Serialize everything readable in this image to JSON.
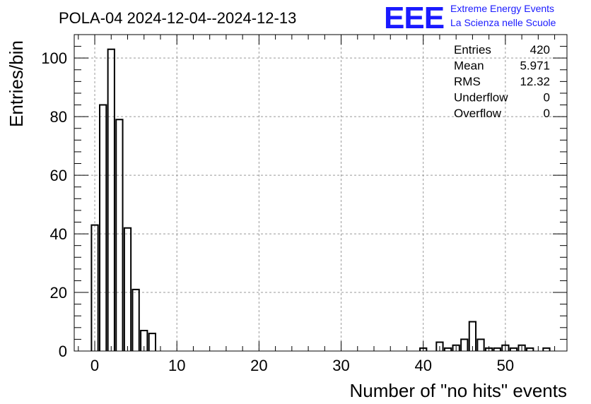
{
  "header": {
    "title": "POLA-04 2024-12-04--2024-12-13"
  },
  "logo": {
    "mark": "EEE",
    "line1": "Extreme Energy Events",
    "line2": "La Scienza nelle Scuole",
    "color": "#1a1aff"
  },
  "stats": {
    "rows": [
      {
        "label": "Entries",
        "value": "420"
      },
      {
        "label": "Mean",
        "value": "5.971"
      },
      {
        "label": "RMS",
        "value": "12.32"
      },
      {
        "label": "Underflow",
        "value": "0"
      },
      {
        "label": "Overflow",
        "value": "0"
      }
    ]
  },
  "chart_data": {
    "type": "bar",
    "style": "histogram-step",
    "title": "POLA-04 2024-12-04--2024-12-13",
    "xlabel": "Number of \"no hits\" events",
    "ylabel": "Entries/bin",
    "xlim": [
      -2.5,
      57.5
    ],
    "ylim": [
      0,
      108
    ],
    "bin_width": 0.8,
    "x_ticks": [
      0,
      10,
      20,
      30,
      40,
      50
    ],
    "y_ticks": [
      0,
      20,
      40,
      60,
      80,
      100
    ],
    "grid": true,
    "legend": "none",
    "stats_box": "top-right",
    "line_color": "#000000",
    "bins": [
      {
        "x": 0,
        "value": 43
      },
      {
        "x": 1,
        "value": 84
      },
      {
        "x": 2,
        "value": 103
      },
      {
        "x": 3,
        "value": 79
      },
      {
        "x": 4,
        "value": 42
      },
      {
        "x": 5,
        "value": 21
      },
      {
        "x": 6,
        "value": 7
      },
      {
        "x": 7,
        "value": 6
      },
      {
        "x": 40,
        "value": 1
      },
      {
        "x": 42,
        "value": 3
      },
      {
        "x": 43,
        "value": 1
      },
      {
        "x": 44,
        "value": 2
      },
      {
        "x": 45,
        "value": 4
      },
      {
        "x": 46,
        "value": 10
      },
      {
        "x": 47,
        "value": 4
      },
      {
        "x": 48,
        "value": 1
      },
      {
        "x": 49,
        "value": 1
      },
      {
        "x": 50,
        "value": 2
      },
      {
        "x": 51,
        "value": 1
      },
      {
        "x": 52,
        "value": 2
      },
      {
        "x": 53,
        "value": 1
      },
      {
        "x": 55,
        "value": 1
      }
    ]
  }
}
